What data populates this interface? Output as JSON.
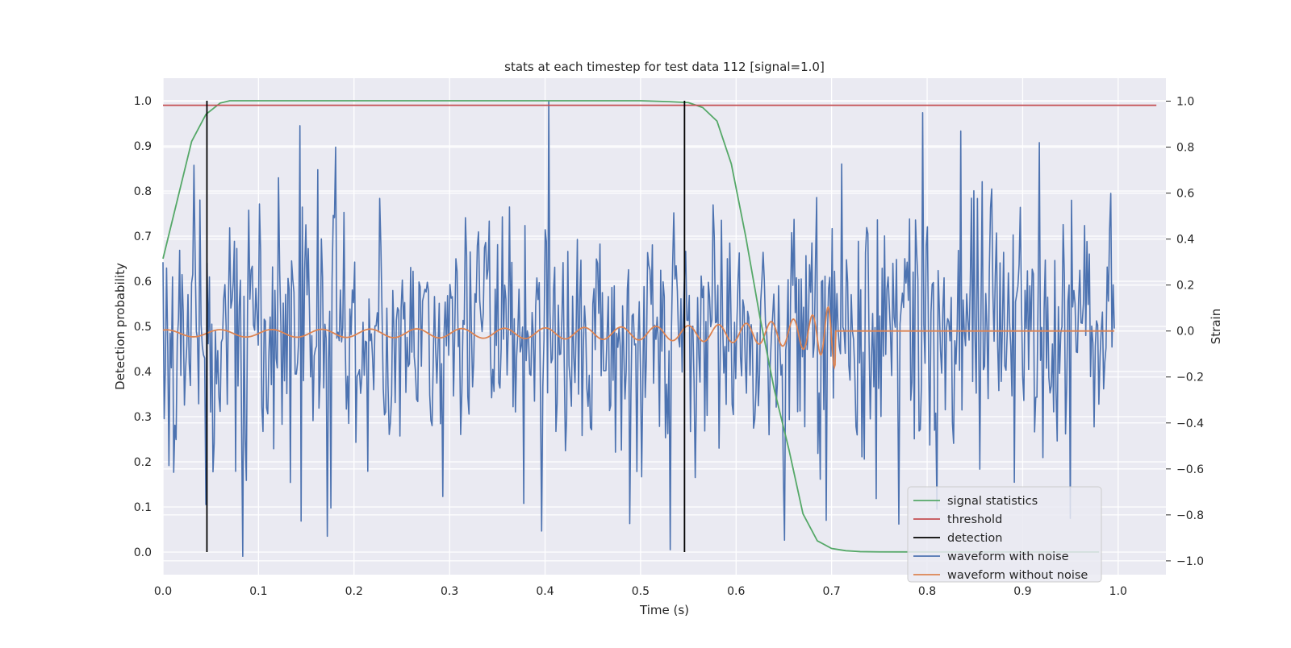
{
  "chart_data": {
    "type": "line",
    "title": "stats at each timestep for test data 112 [signal=1.0]",
    "xlabel": "Time (s)",
    "ylabel_left": "Detection probability",
    "ylabel_right": "Strain",
    "xlim": [
      0.0,
      1.05
    ],
    "ylim_left": [
      -0.05,
      1.05
    ],
    "ylim_right": [
      -1.06,
      1.1
    ],
    "x_ticks": [
      "0.0",
      "0.1",
      "0.2",
      "0.3",
      "0.4",
      "0.5",
      "0.6",
      "0.7",
      "0.8",
      "0.9",
      "1.0"
    ],
    "y_left_ticks": [
      "0.0",
      "0.1",
      "0.2",
      "0.3",
      "0.4",
      "0.5",
      "0.6",
      "0.7",
      "0.8",
      "0.9",
      "1.0"
    ],
    "y_right_ticks": [
      "−1.0",
      "−0.8",
      "−0.6",
      "−0.4",
      "−0.2",
      "0.0",
      "0.2",
      "0.4",
      "0.6",
      "0.8",
      "1.0"
    ],
    "grid": true,
    "legend_position": "bottom-right",
    "colors": {
      "signal_statistics": "#55a868",
      "threshold": "#c44e52",
      "detection": "#000000",
      "waveform_with_noise": "#4c72b0",
      "waveform_without_noise": "#dd8452",
      "axes_background": "#eaeaf2",
      "grid": "#ffffff"
    },
    "series": [
      {
        "name": "signal statistics",
        "axis": "left",
        "x": [
          0.0,
          0.015,
          0.03,
          0.045,
          0.06,
          0.07,
          0.1,
          0.2,
          0.3,
          0.4,
          0.5,
          0.53,
          0.55,
          0.565,
          0.58,
          0.595,
          0.61,
          0.625,
          0.64,
          0.655,
          0.67,
          0.685,
          0.7,
          0.715,
          0.73,
          0.75,
          0.8,
          0.9,
          0.98
        ],
        "y": [
          0.65,
          0.78,
          0.91,
          0.97,
          0.995,
          1.0,
          1.0,
          1.0,
          1.0,
          1.0,
          1.0,
          0.998,
          0.996,
          0.985,
          0.955,
          0.86,
          0.7,
          0.52,
          0.36,
          0.23,
          0.085,
          0.025,
          0.008,
          0.003,
          0.001,
          0.0005,
          0.0003,
          0.0002,
          0.0002
        ]
      },
      {
        "name": "threshold",
        "axis": "left",
        "x": [
          0.0,
          1.04
        ],
        "y": [
          0.99,
          0.99
        ]
      },
      {
        "name": "detection",
        "axis": "left",
        "segments": [
          {
            "x": 0.046,
            "y": [
              0.0,
              1.0
            ]
          },
          {
            "x": 0.546,
            "y": [
              0.0,
              1.0
            ]
          }
        ]
      },
      {
        "name": "waveform with noise",
        "axis": "right",
        "x_range": [
          0.0,
          0.996
        ],
        "n_points": 800,
        "noise_std": 0.28,
        "notable_points": [
          {
            "x": 0.084,
            "y": -0.98
          },
          {
            "x": 0.176,
            "y": -0.77
          },
          {
            "x": 0.181,
            "y": 0.8
          },
          {
            "x": 0.293,
            "y": -0.72
          },
          {
            "x": 0.378,
            "y": -0.75
          },
          {
            "x": 0.396,
            "y": -0.87
          },
          {
            "x": 0.404,
            "y": 1.0
          },
          {
            "x": 0.651,
            "y": -0.91
          },
          {
            "x": 0.795,
            "y": 0.95
          },
          {
            "x": 0.77,
            "y": -0.84
          },
          {
            "x": 0.835,
            "y": 0.87
          }
        ]
      },
      {
        "name": "waveform without noise",
        "axis": "right",
        "x_range": [
          0.0,
          0.996
        ],
        "description_points": {
          "merger_time": 0.704,
          "early_amplitude": 0.015,
          "peak_amplitude": 0.17,
          "post_merger_value": 0.0
        }
      }
    ]
  }
}
